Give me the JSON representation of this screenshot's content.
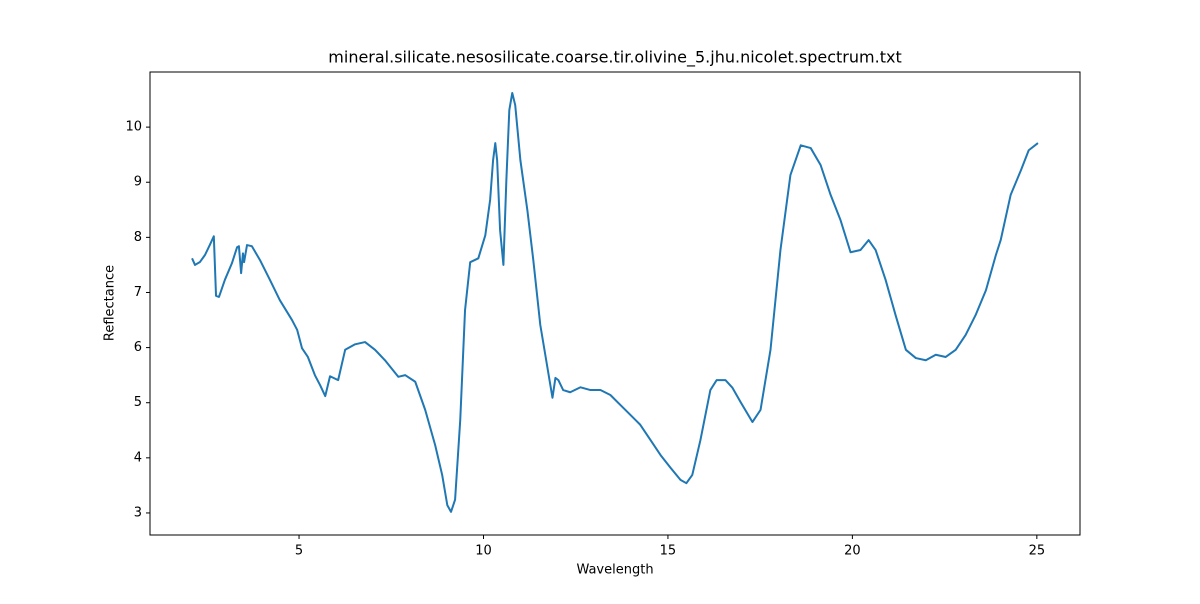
{
  "chart_data": {
    "type": "line",
    "title": "mineral.silicate.nesosilicate.coarse.tir.olivine_5.jhu.nicolet.spectrum.txt",
    "xlabel": "Wavelength",
    "ylabel": "Reflectance",
    "color": "#1f77b4",
    "x": [
      2.1,
      2.18,
      2.31,
      2.45,
      2.58,
      2.69,
      2.75,
      2.83,
      2.99,
      3.18,
      3.32,
      3.37,
      3.43,
      3.48,
      3.51,
      3.59,
      3.72,
      3.94,
      4.21,
      4.48,
      4.81,
      4.95,
      5.08,
      5.24,
      5.43,
      5.57,
      5.71,
      5.84,
      6.06,
      6.25,
      6.52,
      6.79,
      7.06,
      7.33,
      7.69,
      7.88,
      8.15,
      8.42,
      8.69,
      8.88,
      9.02,
      9.12,
      9.23,
      9.37,
      9.5,
      9.64,
      9.86,
      10.05,
      10.18,
      10.26,
      10.32,
      10.37,
      10.45,
      10.54,
      10.62,
      10.7,
      10.78,
      10.86,
      11.0,
      11.19,
      11.35,
      11.54,
      11.7,
      11.87,
      11.95,
      12.03,
      12.16,
      12.35,
      12.63,
      12.9,
      13.17,
      13.44,
      13.71,
      13.98,
      14.25,
      14.53,
      14.8,
      15.07,
      15.34,
      15.5,
      15.66,
      15.88,
      16.15,
      16.32,
      16.56,
      16.75,
      16.97,
      17.29,
      17.51,
      17.78,
      18.05,
      18.32,
      18.6,
      18.87,
      19.14,
      19.41,
      19.68,
      19.95,
      20.22,
      20.44,
      20.63,
      20.9,
      21.17,
      21.45,
      21.72,
      21.99,
      22.26,
      22.53,
      22.8,
      23.07,
      23.34,
      23.62,
      23.89,
      24.02,
      24.29,
      24.57,
      24.78,
      25.03
    ],
    "values": [
      7.62,
      7.5,
      7.55,
      7.68,
      7.86,
      8.02,
      6.94,
      6.92,
      7.23,
      7.53,
      7.82,
      7.84,
      7.35,
      7.71,
      7.55,
      7.86,
      7.84,
      7.59,
      7.23,
      6.86,
      6.5,
      6.32,
      5.99,
      5.83,
      5.5,
      5.32,
      5.12,
      5.48,
      5.41,
      5.96,
      6.06,
      6.1,
      5.96,
      5.77,
      5.47,
      5.5,
      5.38,
      4.87,
      4.23,
      3.69,
      3.14,
      3.02,
      3.24,
      4.69,
      6.68,
      7.55,
      7.62,
      8.04,
      8.68,
      9.4,
      9.71,
      9.4,
      8.13,
      7.5,
      9.04,
      10.31,
      10.62,
      10.4,
      9.4,
      8.49,
      7.59,
      6.41,
      5.77,
      5.09,
      5.45,
      5.41,
      5.23,
      5.19,
      5.28,
      5.23,
      5.23,
      5.14,
      4.96,
      4.78,
      4.6,
      4.32,
      4.05,
      3.82,
      3.6,
      3.54,
      3.69,
      4.32,
      5.23,
      5.41,
      5.41,
      5.27,
      5.01,
      4.65,
      4.87,
      5.96,
      7.77,
      9.13,
      9.67,
      9.62,
      9.31,
      8.77,
      8.31,
      7.73,
      7.77,
      7.95,
      7.77,
      7.23,
      6.59,
      5.96,
      5.81,
      5.77,
      5.87,
      5.83,
      5.96,
      6.23,
      6.59,
      7.04,
      7.68,
      7.95,
      8.77,
      9.22,
      9.58,
      9.71
    ],
    "xlim": [
      0.96,
      26.17
    ],
    "xticks": [
      5,
      10,
      15,
      20,
      25
    ],
    "ylim": [
      2.6,
      11.0
    ],
    "yticks": [
      3,
      4,
      5,
      6,
      7,
      8,
      9,
      10
    ]
  }
}
